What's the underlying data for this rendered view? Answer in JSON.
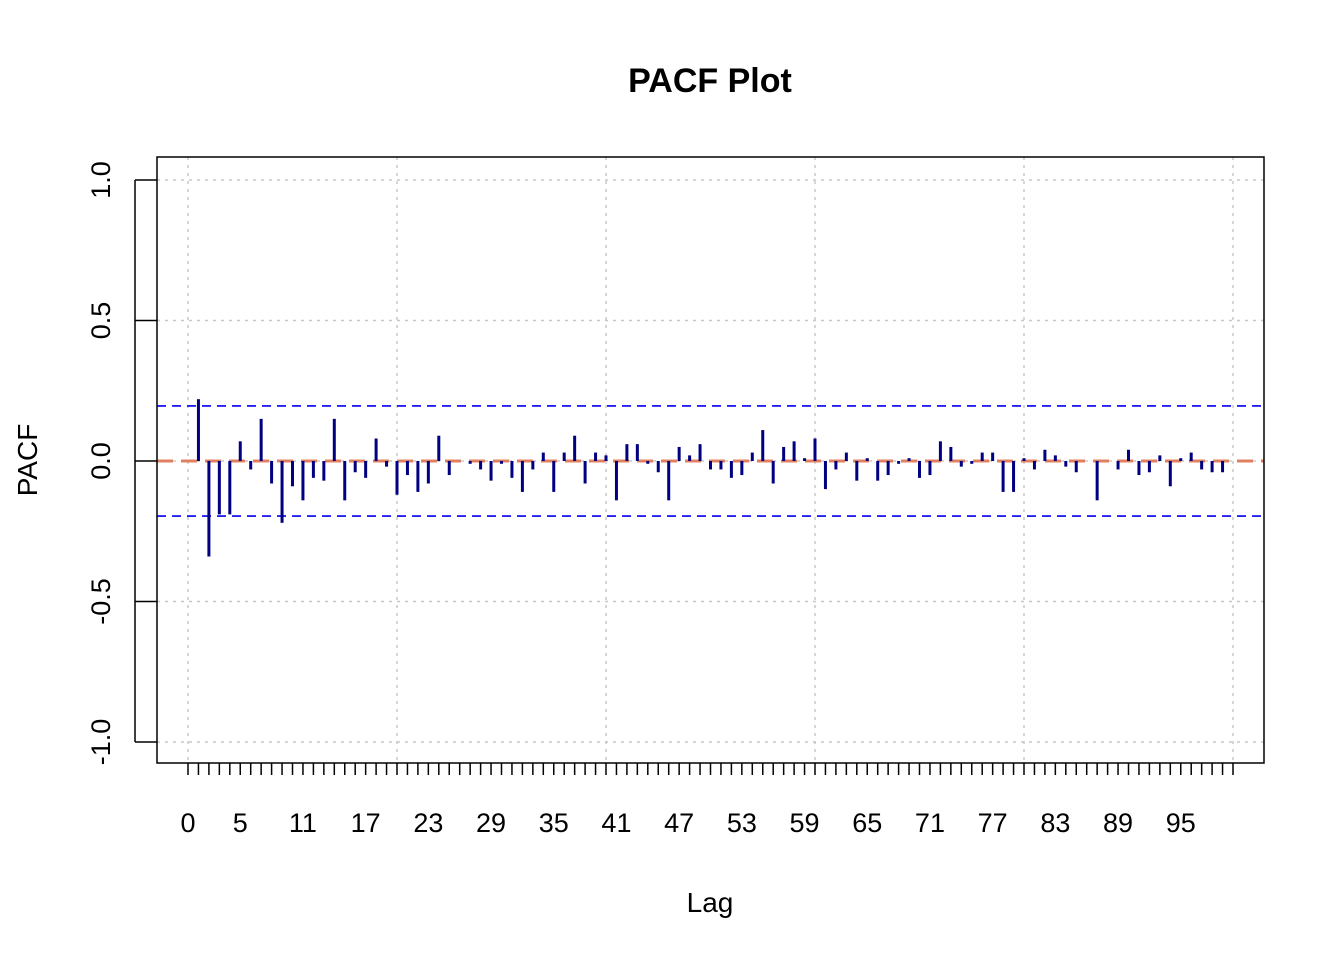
{
  "chart_data": {
    "type": "bar",
    "title": "PACF Plot",
    "xlabel": "Lag",
    "ylabel": "PACF",
    "xlim": [
      0,
      100
    ],
    "ylim": [
      -1.0,
      1.0
    ],
    "x_tick_labels": [
      "0",
      "5",
      "11",
      "17",
      "23",
      "29",
      "35",
      "41",
      "47",
      "53",
      "59",
      "65",
      "71",
      "77",
      "83",
      "89",
      "95"
    ],
    "y_tick_labels": [
      "-1.0",
      "-0.5",
      "0.0",
      "0.5",
      "1.0"
    ],
    "grid": true,
    "confidence_bound": 0.196,
    "lags": [
      1,
      2,
      3,
      4,
      5,
      6,
      7,
      8,
      9,
      10,
      11,
      12,
      13,
      14,
      15,
      16,
      17,
      18,
      19,
      20,
      21,
      22,
      23,
      24,
      25,
      26,
      27,
      28,
      29,
      30,
      31,
      32,
      33,
      34,
      35,
      36,
      37,
      38,
      39,
      40,
      41,
      42,
      43,
      44,
      45,
      46,
      47,
      48,
      49,
      50,
      51,
      52,
      53,
      54,
      55,
      56,
      57,
      58,
      59,
      60,
      61,
      62,
      63,
      64,
      65,
      66,
      67,
      68,
      69,
      70,
      71,
      72,
      73,
      74,
      75,
      76,
      77,
      78,
      79,
      80,
      81,
      82,
      83,
      84,
      85,
      86,
      87,
      88,
      89,
      90,
      91,
      92,
      93,
      94,
      95,
      96,
      97,
      98,
      99,
      100
    ],
    "values": [
      0.22,
      -0.34,
      -0.19,
      -0.19,
      0.07,
      -0.03,
      0.15,
      -0.08,
      -0.22,
      -0.09,
      -0.14,
      -0.06,
      -0.07,
      0.15,
      -0.14,
      -0.04,
      -0.06,
      0.08,
      -0.02,
      -0.12,
      -0.05,
      -0.11,
      -0.08,
      0.09,
      -0.05,
      0.0,
      -0.01,
      -0.03,
      -0.07,
      -0.01,
      -0.06,
      -0.11,
      -0.03,
      0.03,
      -0.11,
      0.03,
      0.09,
      -0.08,
      0.03,
      0.02,
      -0.14,
      0.06,
      0.06,
      -0.01,
      -0.04,
      -0.14,
      0.05,
      0.02,
      0.06,
      -0.03,
      -0.03,
      -0.06,
      -0.05,
      0.03,
      0.11,
      -0.08,
      0.05,
      0.07,
      0.01,
      0.08,
      -0.1,
      -0.03,
      0.03,
      -0.07,
      0.01,
      -0.07,
      -0.05,
      -0.01,
      0.01,
      -0.06,
      -0.05,
      0.07,
      0.05,
      -0.02,
      -0.01,
      0.03,
      0.03,
      -0.11,
      -0.11,
      0.01,
      -0.03,
      0.04,
      0.02,
      -0.02,
      -0.04,
      0.0,
      -0.14,
      0.0,
      -0.03,
      0.04,
      -0.05,
      -0.04,
      0.02,
      -0.09,
      0.01,
      0.03,
      -0.03,
      -0.04,
      -0.04,
      0.0
    ],
    "colors": {
      "bars": "#000080",
      "zero_line": "#e08060",
      "confidence_lines": "#0000ee",
      "grid": "#c8c8c8",
      "frame": "#000000"
    }
  }
}
